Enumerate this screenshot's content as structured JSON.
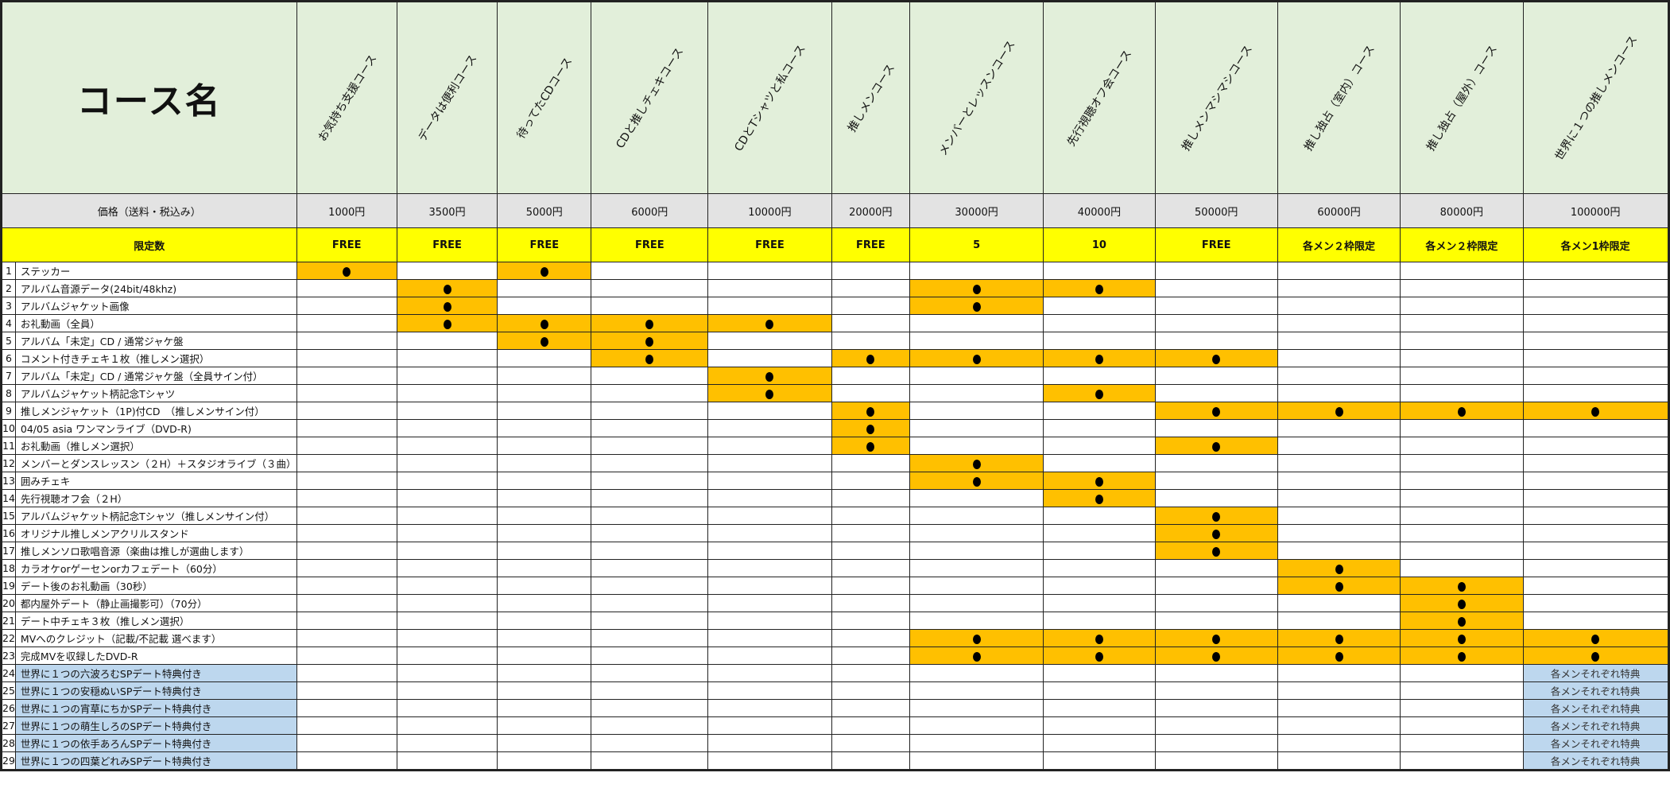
{
  "header": {
    "title": "コース名",
    "price_label": "価格（送料・税込み）",
    "limit_label": "限定数"
  },
  "courses": [
    {
      "name": "お気持ち支援コース",
      "price": "1000円",
      "limit": "FREE"
    },
    {
      "name": "データは便利コース",
      "price": "3500円",
      "limit": "FREE"
    },
    {
      "name": "待ってたCDコース",
      "price": "5000円",
      "limit": "FREE"
    },
    {
      "name": "CDと推しチェキコース",
      "price": "6000円",
      "limit": "FREE"
    },
    {
      "name": "CDとTシャツと私コース",
      "price": "10000円",
      "limit": "FREE"
    },
    {
      "name": "推しメンコース",
      "price": "20000円",
      "limit": "FREE"
    },
    {
      "name": "メンバーとレッスンコース",
      "price": "30000円",
      "limit": "5"
    },
    {
      "name": "先行視聴オフ会コース",
      "price": "40000円",
      "limit": "10"
    },
    {
      "name": "推しメンマシマシコース",
      "price": "50000円",
      "limit": "FREE"
    },
    {
      "name": "推し独占（室内）コース",
      "price": "60000円",
      "limit": "各メン２枠限定"
    },
    {
      "name": "推し独占（屋外）コース",
      "price": "80000円",
      "limit": "各メン２枠限定"
    },
    {
      "name": "世界に１つの推しメンコース",
      "price": "100000円",
      "limit": "各メン1枠限定"
    }
  ],
  "colors": {
    "included": "#ffc000",
    "header": "#e2efda",
    "price": "#e3e3e3",
    "limit": "#ffff00",
    "special": "#bdd7ee"
  },
  "items": [
    {
      "no": "1",
      "name": "ステッカー",
      "included": [
        1,
        3
      ]
    },
    {
      "no": "2",
      "name": "アルバム音源データ(24bit/48khz)",
      "included": [
        2,
        7,
        8
      ]
    },
    {
      "no": "3",
      "name": "アルバムジャケット画像",
      "included": [
        2,
        7
      ]
    },
    {
      "no": "4",
      "name": "お礼動画（全員）",
      "included": [
        2,
        3,
        4,
        5
      ]
    },
    {
      "no": "5",
      "name": "アルバム「未定」CD / 通常ジャケ盤",
      "included": [
        3,
        4
      ]
    },
    {
      "no": "6",
      "name": "コメント付きチェキ１枚（推しメン選択）",
      "included": [
        4,
        6,
        7,
        8,
        9
      ]
    },
    {
      "no": "7",
      "name": "アルバム「未定」CD / 通常ジャケ盤（全員サイン付）",
      "included": [
        5
      ]
    },
    {
      "no": "8",
      "name": "アルバムジャケット柄記念Tシャツ",
      "included": [
        5,
        8
      ]
    },
    {
      "no": "9",
      "name": "推しメンジャケット（1P)付CD　（推しメンサイン付）",
      "included": [
        6,
        9,
        10,
        11,
        12
      ]
    },
    {
      "no": "10",
      "name": "04/05 asia ワンマンライブ（DVD-R)",
      "included": [
        6
      ]
    },
    {
      "no": "11",
      "name": "お礼動画（推しメン選択）",
      "included": [
        6,
        9
      ]
    },
    {
      "no": "12",
      "name": "メンバーとダンスレッスン（２H）＋スタジオライブ（３曲）",
      "included": [
        7
      ]
    },
    {
      "no": "13",
      "name": "囲みチェキ",
      "included": [
        7,
        8
      ]
    },
    {
      "no": "14",
      "name": "先行視聴オフ会（２H）",
      "included": [
        8
      ]
    },
    {
      "no": "15",
      "name": "アルバムジャケット柄記念Tシャツ（推しメンサイン付）",
      "included": [
        9
      ]
    },
    {
      "no": "16",
      "name": "オリジナル推しメンアクリルスタンド",
      "included": [
        9
      ]
    },
    {
      "no": "17",
      "name": "推しメンソロ歌唱音源（楽曲は推しが選曲します）",
      "included": [
        9
      ]
    },
    {
      "no": "18",
      "name": "カラオケorゲーセンorカフェデート（60分）",
      "included": [
        10
      ]
    },
    {
      "no": "19",
      "name": "デート後のお礼動画（30秒）",
      "included": [
        10,
        11
      ]
    },
    {
      "no": "20",
      "name": "都内屋外デート（静止画撮影可）（70分）",
      "included": [
        11
      ]
    },
    {
      "no": "21",
      "name": "デート中チェキ３枚（推しメン選択）",
      "included": [
        11
      ]
    },
    {
      "no": "22",
      "name": "MVへのクレジット（記載/不記載 選べます）",
      "included": [
        7,
        8,
        9,
        10,
        11,
        12
      ]
    },
    {
      "no": "23",
      "name": "完成MVを収録したDVD-R",
      "included": [
        7,
        8,
        9,
        10,
        11,
        12
      ]
    },
    {
      "no": "24",
      "name": "世界に１つの六波ろむSPデート特典付き",
      "special": true,
      "note": "各メンそれぞれ特典"
    },
    {
      "no": "25",
      "name": "世界に１つの安穏ぬいSPデート特典付き",
      "special": true,
      "note": "各メンそれぞれ特典"
    },
    {
      "no": "26",
      "name": "世界に１つの宵草にちかSPデート特典付き",
      "special": true,
      "note": "各メンそれぞれ特典"
    },
    {
      "no": "27",
      "name": "世界に１つの萌生しろのSPデート特典付き",
      "special": true,
      "note": "各メンそれぞれ特典"
    },
    {
      "no": "28",
      "name": "世界に１つの依手あろんSPデート特典付き",
      "special": true,
      "note": "各メンそれぞれ特典"
    },
    {
      "no": "29",
      "name": "世界に１つの四葉どれみSPデート特典付き",
      "special": true,
      "note": "各メンそれぞれ特典"
    }
  ]
}
